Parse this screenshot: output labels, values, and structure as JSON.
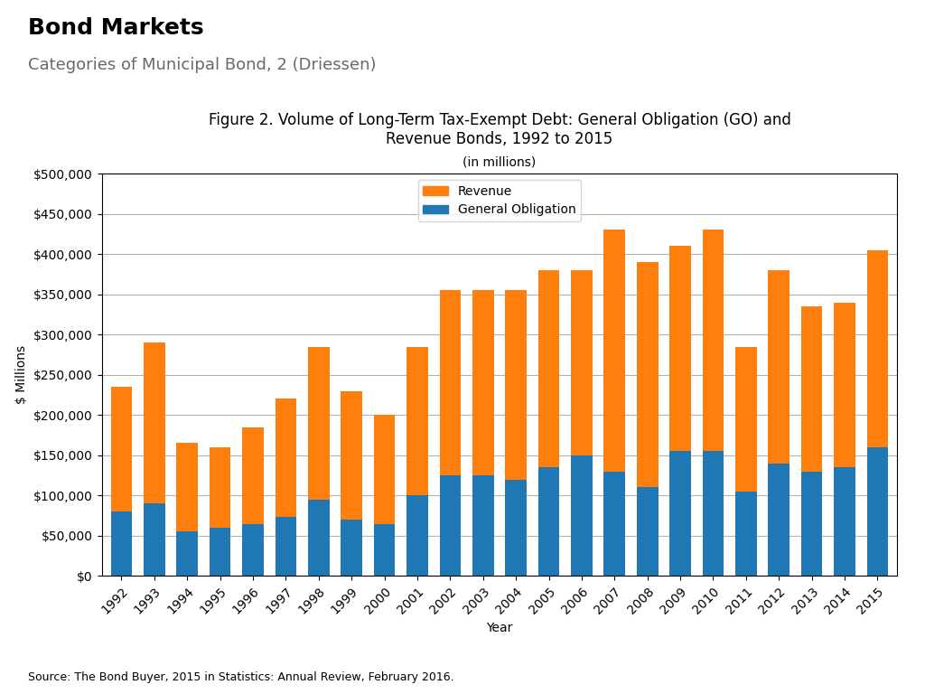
{
  "chart_data": {
    "type": "bar",
    "stacked": true,
    "title": "Figure 2. Volume of Long-Term Tax-Exempt Debt: General Obligation (GO) and\nRevenue Bonds, 1992 to 2015",
    "subtitle": "(in millions)",
    "annotations": [
      "Bond Markets",
      "Categories of Municipal Bond, 2 (Driessen)",
      "Source: The Bond Buyer, 2015 in Statistics: Annual Review, February 2016."
    ],
    "x_label": "Year",
    "y_label": "$ Millions",
    "categories": [
      "1992",
      "1993",
      "1994",
      "1995",
      "1996",
      "1997",
      "1998",
      "1999",
      "2000",
      "2001",
      "2002",
      "2003",
      "2004",
      "2005",
      "2006",
      "2007",
      "2008",
      "2009",
      "2010",
      "2011",
      "2012",
      "2013",
      "2014",
      "2015"
    ],
    "series": [
      {
        "name": "General Obligation",
        "values": [
          80000,
          90000,
          55000,
          60000,
          65000,
          73000,
          95000,
          70000,
          65000,
          100000,
          125000,
          125000,
          120000,
          135000,
          150000,
          130000,
          110000,
          155000,
          155000,
          105000,
          140000,
          130000,
          135000,
          160000
        ]
      },
      {
        "name": "Revenue",
        "values": [
          155000,
          200000,
          110000,
          100000,
          120000,
          148000,
          190000,
          160000,
          135000,
          185000,
          230000,
          230000,
          235000,
          245000,
          230000,
          300000,
          280000,
          255000,
          275000,
          180000,
          240000,
          205000,
          205000,
          245000
        ]
      }
    ],
    "ylim": [
      0,
      500000
    ],
    "yticks": [
      {
        "value": 0,
        "label": "$0"
      },
      {
        "value": 50000,
        "label": "$50,000"
      },
      {
        "value": 100000,
        "label": "$100,000"
      },
      {
        "value": 150000,
        "label": "$150,000"
      },
      {
        "value": 200000,
        "label": "$200,000"
      },
      {
        "value": 250000,
        "label": "$250,000"
      },
      {
        "value": 300000,
        "label": "$300,000"
      },
      {
        "value": 350000,
        "label": "$350,000"
      },
      {
        "value": 400000,
        "label": "$400,000"
      },
      {
        "value": 450000,
        "label": "$450,000"
      },
      {
        "value": 500000,
        "label": "$500,000"
      }
    ],
    "grid": true,
    "legend": "upper center"
  }
}
